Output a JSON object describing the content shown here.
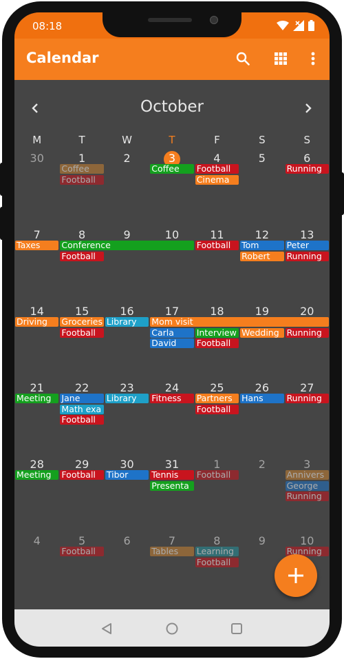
{
  "status_bar": {
    "time": "08:18"
  },
  "app_bar": {
    "title": "Calendar"
  },
  "month_nav": {
    "title": "October"
  },
  "weekdays": [
    "M",
    "T",
    "W",
    "T",
    "F",
    "S",
    "S"
  ],
  "today_index": 3,
  "colors": {
    "orange": "#f57e1e",
    "green": "#14a01e",
    "red": "#c8141e",
    "blue": "#1e73c8",
    "teal": "#1ea0c8",
    "brown": "#c88232",
    "darkteal": "#24909c"
  },
  "weeks": [
    {
      "days": [
        "30",
        "1",
        "2",
        "3",
        "4",
        "5",
        "6"
      ],
      "dim": [
        true,
        false,
        false,
        false,
        false,
        false,
        false
      ],
      "events": [
        {
          "label": "Coffee",
          "start": 1,
          "span": 1,
          "row": 0,
          "color": "brown",
          "faded": true
        },
        {
          "label": "Football",
          "start": 1,
          "span": 1,
          "row": 1,
          "color": "red",
          "faded": true
        },
        {
          "label": "Coffee",
          "start": 3,
          "span": 1,
          "row": 0,
          "color": "green",
          "faded": false
        },
        {
          "label": "Football",
          "start": 4,
          "span": 1,
          "row": 0,
          "color": "red",
          "faded": false
        },
        {
          "label": "Cinema",
          "start": 4,
          "span": 1,
          "row": 1,
          "color": "orange",
          "faded": false
        },
        {
          "label": "Running",
          "start": 6,
          "span": 1,
          "row": 0,
          "color": "red",
          "faded": false
        }
      ]
    },
    {
      "days": [
        "7",
        "8",
        "9",
        "10",
        "11",
        "12",
        "13"
      ],
      "dim": [
        false,
        false,
        false,
        false,
        false,
        false,
        false
      ],
      "events": [
        {
          "label": "Taxes",
          "start": 0,
          "span": 1,
          "row": 0,
          "color": "orange",
          "faded": false
        },
        {
          "label": "Conference",
          "start": 1,
          "span": 3,
          "row": 0,
          "color": "green",
          "faded": false
        },
        {
          "label": "Football",
          "start": 4,
          "span": 1,
          "row": 0,
          "color": "red",
          "faded": false
        },
        {
          "label": "Tom",
          "start": 5,
          "span": 1,
          "row": 0,
          "color": "blue",
          "faded": false
        },
        {
          "label": "Peter",
          "start": 6,
          "span": 1,
          "row": 0,
          "color": "blue",
          "faded": false
        },
        {
          "label": "Football",
          "start": 1,
          "span": 1,
          "row": 1,
          "color": "red",
          "faded": false
        },
        {
          "label": "Robert",
          "start": 5,
          "span": 1,
          "row": 1,
          "color": "orange",
          "faded": false
        },
        {
          "label": "Running",
          "start": 6,
          "span": 1,
          "row": 1,
          "color": "red",
          "faded": false
        }
      ]
    },
    {
      "days": [
        "14",
        "15",
        "16",
        "17",
        "18",
        "19",
        "20"
      ],
      "dim": [
        false,
        false,
        false,
        false,
        false,
        false,
        false
      ],
      "events": [
        {
          "label": "Driving",
          "start": 0,
          "span": 1,
          "row": 0,
          "color": "orange",
          "faded": false
        },
        {
          "label": "Groceries",
          "start": 1,
          "span": 1,
          "row": 0,
          "color": "orange",
          "faded": false
        },
        {
          "label": "Library",
          "start": 2,
          "span": 1,
          "row": 0,
          "color": "teal",
          "faded": false
        },
        {
          "label": "Mom visit",
          "start": 3,
          "span": 4,
          "row": 0,
          "color": "orange",
          "faded": false
        },
        {
          "label": "Football",
          "start": 1,
          "span": 1,
          "row": 1,
          "color": "red",
          "faded": false
        },
        {
          "label": "Carla",
          "start": 3,
          "span": 1,
          "row": 1,
          "color": "blue",
          "faded": false
        },
        {
          "label": "Interview",
          "start": 4,
          "span": 1,
          "row": 1,
          "color": "green",
          "faded": false
        },
        {
          "label": "Wedding",
          "start": 5,
          "span": 1,
          "row": 1,
          "color": "orange",
          "faded": false
        },
        {
          "label": "Running",
          "start": 6,
          "span": 1,
          "row": 1,
          "color": "red",
          "faded": false
        },
        {
          "label": "David",
          "start": 3,
          "span": 1,
          "row": 2,
          "color": "blue",
          "faded": false
        },
        {
          "label": "Football",
          "start": 4,
          "span": 1,
          "row": 2,
          "color": "red",
          "faded": false
        }
      ]
    },
    {
      "days": [
        "21",
        "22",
        "23",
        "24",
        "25",
        "26",
        "27"
      ],
      "dim": [
        false,
        false,
        false,
        false,
        false,
        false,
        false
      ],
      "events": [
        {
          "label": "Meeting",
          "start": 0,
          "span": 1,
          "row": 0,
          "color": "green",
          "faded": false
        },
        {
          "label": "Jane",
          "start": 1,
          "span": 1,
          "row": 0,
          "color": "blue",
          "faded": false
        },
        {
          "label": "Library",
          "start": 2,
          "span": 1,
          "row": 0,
          "color": "teal",
          "faded": false
        },
        {
          "label": "Fitness",
          "start": 3,
          "span": 1,
          "row": 0,
          "color": "red",
          "faded": false
        },
        {
          "label": "Partners",
          "start": 4,
          "span": 1,
          "row": 0,
          "color": "orange",
          "faded": false
        },
        {
          "label": "Hans",
          "start": 5,
          "span": 1,
          "row": 0,
          "color": "blue",
          "faded": false
        },
        {
          "label": "Running",
          "start": 6,
          "span": 1,
          "row": 0,
          "color": "red",
          "faded": false
        },
        {
          "label": "Math exa",
          "start": 1,
          "span": 1,
          "row": 1,
          "color": "teal",
          "faded": false
        },
        {
          "label": "Football",
          "start": 4,
          "span": 1,
          "row": 1,
          "color": "red",
          "faded": false
        },
        {
          "label": "Football",
          "start": 1,
          "span": 1,
          "row": 2,
          "color": "red",
          "faded": false
        }
      ]
    },
    {
      "days": [
        "28",
        "29",
        "30",
        "31",
        "1",
        "2",
        "3"
      ],
      "dim": [
        false,
        false,
        false,
        false,
        true,
        true,
        true
      ],
      "events": [
        {
          "label": "Meeting",
          "start": 0,
          "span": 1,
          "row": 0,
          "color": "green",
          "faded": false
        },
        {
          "label": "Football",
          "start": 1,
          "span": 1,
          "row": 0,
          "color": "red",
          "faded": false
        },
        {
          "label": "Tibor",
          "start": 2,
          "span": 1,
          "row": 0,
          "color": "blue",
          "faded": false
        },
        {
          "label": "Tennis",
          "start": 3,
          "span": 1,
          "row": 0,
          "color": "red",
          "faded": false
        },
        {
          "label": "Football",
          "start": 4,
          "span": 1,
          "row": 0,
          "color": "red",
          "faded": true
        },
        {
          "label": "Annivers",
          "start": 6,
          "span": 1,
          "row": 0,
          "color": "brown",
          "faded": true
        },
        {
          "label": "Presenta",
          "start": 3,
          "span": 1,
          "row": 1,
          "color": "green",
          "faded": false
        },
        {
          "label": "George",
          "start": 6,
          "span": 1,
          "row": 1,
          "color": "blue",
          "faded": true
        },
        {
          "label": "Running",
          "start": 6,
          "span": 1,
          "row": 2,
          "color": "red",
          "faded": true
        }
      ]
    },
    {
      "days": [
        "4",
        "5",
        "6",
        "7",
        "8",
        "9",
        "10"
      ],
      "dim": [
        true,
        true,
        true,
        true,
        true,
        true,
        true
      ],
      "events": [
        {
          "label": "Football",
          "start": 1,
          "span": 1,
          "row": 0,
          "color": "red",
          "faded": true
        },
        {
          "label": "Tables",
          "start": 3,
          "span": 1,
          "row": 0,
          "color": "brown",
          "faded": true
        },
        {
          "label": "Learning",
          "start": 4,
          "span": 1,
          "row": 0,
          "color": "darkteal",
          "faded": true
        },
        {
          "label": "Running",
          "start": 6,
          "span": 1,
          "row": 0,
          "color": "red",
          "faded": true
        },
        {
          "label": "Football",
          "start": 4,
          "span": 1,
          "row": 1,
          "color": "red",
          "faded": true
        }
      ]
    }
  ]
}
